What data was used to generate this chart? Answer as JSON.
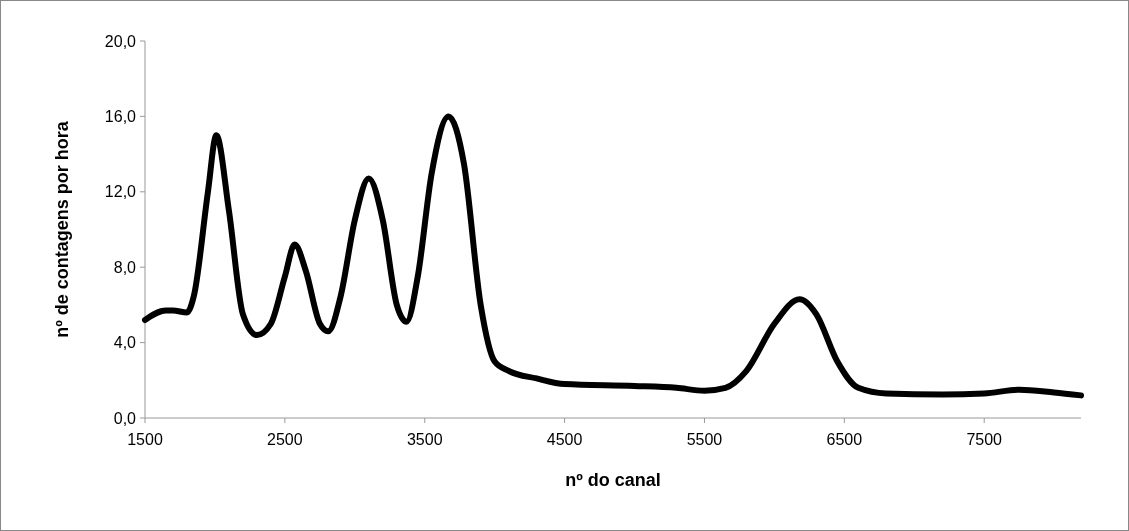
{
  "chart_data": {
    "type": "line",
    "xlabel": "nº do canal",
    "ylabel": "nº de contagens por hora",
    "xlim": [
      1500,
      8192
    ],
    "xticks": [
      1500,
      2500,
      3500,
      4500,
      5500,
      6500,
      7500
    ],
    "ylim": [
      0,
      20
    ],
    "yticks": [
      {
        "value": 0,
        "label": "0,0"
      },
      {
        "value": 4,
        "label": "4,0"
      },
      {
        "value": 8,
        "label": "8,0"
      },
      {
        "value": 12,
        "label": "12,0"
      },
      {
        "value": 16,
        "label": "16,0"
      },
      {
        "value": 20,
        "label": "20,0"
      }
    ],
    "grid": false,
    "marker": "none",
    "line_style": "solid",
    "series": [
      {
        "color": "#000000",
        "x": [
          1500,
          1650,
          1700,
          1800,
          1850,
          1950,
          2010,
          2100,
          2200,
          2300,
          2400,
          2500,
          2570,
          2650,
          2750,
          2810,
          2900,
          3000,
          3100,
          3200,
          3300,
          3370,
          3450,
          3550,
          3670,
          3780,
          3900,
          4000,
          4100,
          4300,
          4500,
          5000,
          5300,
          5500,
          5650,
          5800,
          6000,
          6180,
          6300,
          6450,
          6600,
          6800,
          7200,
          7500,
          7750,
          8000,
          8192
        ],
        "values": [
          5.2,
          5.7,
          5.7,
          5.6,
          6.5,
          12,
          15.0,
          11,
          5.5,
          4.4,
          5.0,
          7.5,
          9.2,
          7.8,
          5.0,
          4.6,
          6.5,
          10.5,
          12.7,
          10.5,
          6,
          5.1,
          7.5,
          13,
          16.0,
          13.5,
          6,
          3,
          2.5,
          2.1,
          1.8,
          1.7,
          1.6,
          1.45,
          1.6,
          2.5,
          5.0,
          6.3,
          5.5,
          3.0,
          1.6,
          1.3,
          1.25,
          1.3,
          1.5,
          1.35,
          1.2
        ]
      }
    ]
  }
}
